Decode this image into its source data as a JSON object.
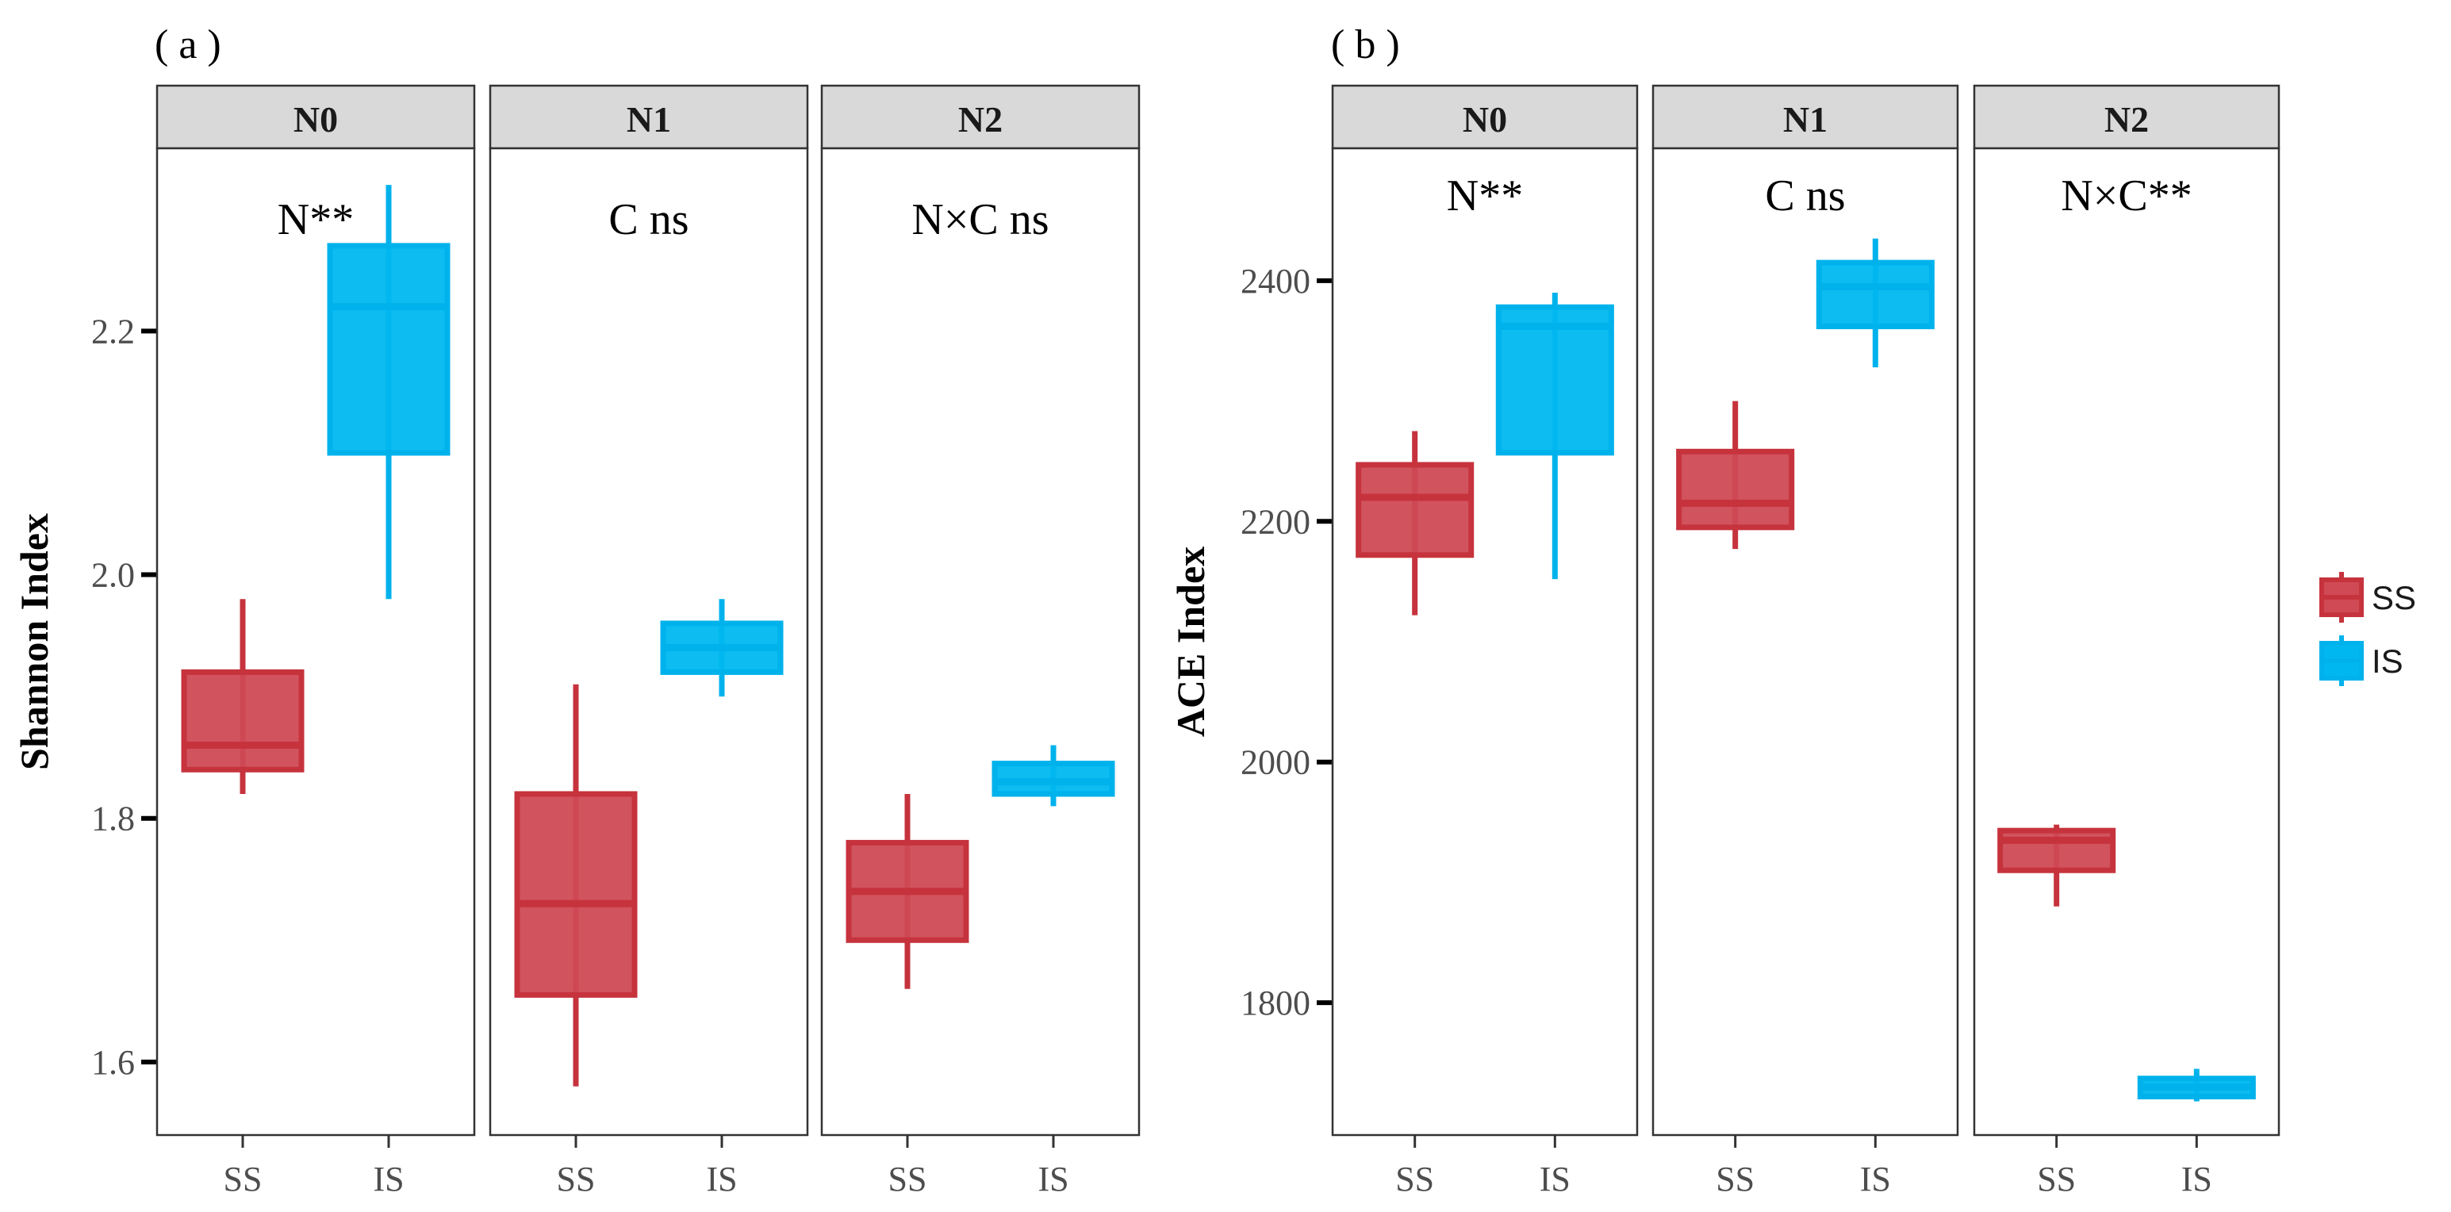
{
  "chart_data": [
    {
      "type": "boxplot",
      "panel_label": "( a )",
      "ylabel": "Shannon Index",
      "ylim": [
        1.54,
        2.35
      ],
      "yticks": [
        1.6,
        1.8,
        2.0,
        2.2
      ],
      "ytick_labels": [
        "1.6",
        "1.8",
        "2.0",
        "2.2"
      ],
      "categories": [
        "SS",
        "IS"
      ],
      "facets": [
        {
          "label": "N0",
          "annotation": "N**",
          "boxes": [
            {
              "group": "SS",
              "min": 1.82,
              "q1": 1.84,
              "median": 1.86,
              "q3": 1.92,
              "max": 1.98
            },
            {
              "group": "IS",
              "min": 1.98,
              "q1": 2.1,
              "median": 2.22,
              "q3": 2.27,
              "max": 2.32
            }
          ]
        },
        {
          "label": "N1",
          "annotation": "C ns",
          "boxes": [
            {
              "group": "SS",
              "min": 1.58,
              "q1": 1.655,
              "median": 1.73,
              "q3": 1.82,
              "max": 1.91
            },
            {
              "group": "IS",
              "min": 1.9,
              "q1": 1.92,
              "median": 1.94,
              "q3": 1.96,
              "max": 1.98
            }
          ]
        },
        {
          "label": "N2",
          "annotation": "N×C ns",
          "boxes": [
            {
              "group": "SS",
              "min": 1.66,
              "q1": 1.7,
              "median": 1.74,
              "q3": 1.78,
              "max": 1.82
            },
            {
              "group": "IS",
              "min": 1.81,
              "q1": 1.82,
              "median": 1.83,
              "q3": 1.845,
              "max": 1.86
            }
          ]
        }
      ]
    },
    {
      "type": "boxplot",
      "panel_label": "( b )",
      "ylabel": "ACE Index",
      "ylim": [
        1690,
        2510
      ],
      "yticks": [
        1800,
        2000,
        2200,
        2400
      ],
      "ytick_labels": [
        "1800",
        "2000",
        "2200",
        "2400"
      ],
      "categories": [
        "SS",
        "IS"
      ],
      "facets": [
        {
          "label": "N0",
          "annotation": "N**",
          "boxes": [
            {
              "group": "SS",
              "min": 2122,
              "q1": 2172,
              "median": 2220,
              "q3": 2247,
              "max": 2275
            },
            {
              "group": "IS",
              "min": 2152,
              "q1": 2257,
              "median": 2362,
              "q3": 2378,
              "max": 2390
            }
          ]
        },
        {
          "label": "N1",
          "annotation": "C ns",
          "boxes": [
            {
              "group": "SS",
              "min": 2177,
              "q1": 2195,
              "median": 2215,
              "q3": 2258,
              "max": 2300
            },
            {
              "group": "IS",
              "min": 2328,
              "q1": 2362,
              "median": 2395,
              "q3": 2415,
              "max": 2435
            }
          ]
        },
        {
          "label": "N2",
          "annotation": "N×C**",
          "boxes": [
            {
              "group": "SS",
              "min": 1880,
              "q1": 1910,
              "median": 1935,
              "q3": 1943,
              "max": 1948
            },
            {
              "group": "IS",
              "min": 1718,
              "q1": 1722,
              "median": 1730,
              "q3": 1737,
              "max": 1745
            }
          ]
        }
      ]
    }
  ],
  "legend": {
    "items": [
      {
        "label": "SS",
        "color": "#c6333d",
        "fill": "#cf4a55"
      },
      {
        "label": "IS",
        "color": "#00b2ec",
        "fill": "#00b8ef"
      }
    ]
  },
  "colors": {
    "SS_line": "#c6333d",
    "SS_fill": "#cf4a55",
    "IS_line": "#00b2ec",
    "IS_fill": "#00b8ef",
    "strip_fill": "#d9d9d9"
  }
}
